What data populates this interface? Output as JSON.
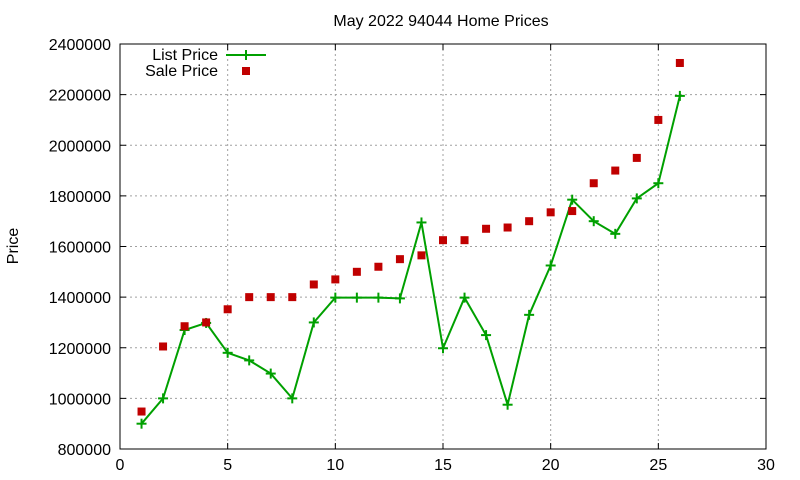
{
  "chart_data": {
    "type": "line",
    "title": "May 2022 94044 Home Prices",
    "xlabel": "",
    "ylabel": "Price",
    "xlim": [
      0,
      30
    ],
    "ylim": [
      800000,
      2400000
    ],
    "xticks": [
      0,
      5,
      10,
      15,
      20,
      25,
      30
    ],
    "yticks": [
      800000,
      1000000,
      1200000,
      1400000,
      1600000,
      1800000,
      2000000,
      2200000,
      2400000
    ],
    "grid": true,
    "legend_position": "top-left",
    "x": [
      1,
      2,
      3,
      4,
      5,
      6,
      7,
      8,
      9,
      10,
      11,
      12,
      13,
      14,
      15,
      16,
      17,
      18,
      19,
      20,
      21,
      22,
      23,
      24,
      25,
      26
    ],
    "series": [
      {
        "name": "List Price",
        "style": "line-plus",
        "color": "#00a000",
        "values": [
          900000,
          1000000,
          1270000,
          1298000,
          1180000,
          1150000,
          1098000,
          1000000,
          1300000,
          1398000,
          1398000,
          1398000,
          1395000,
          1695000,
          1198000,
          1398000,
          1250000,
          975000,
          1330000,
          1525000,
          1785000,
          1700000,
          1650000,
          1790000,
          1850000,
          2195000
        ]
      },
      {
        "name": "Sale Price",
        "style": "square-points",
        "color": "#c00000",
        "values": [
          948000,
          1205000,
          1285000,
          1300000,
          1352000,
          1400000,
          1400000,
          1400000,
          1450000,
          1470000,
          1500000,
          1520000,
          1550000,
          1565000,
          1625000,
          1625000,
          1670000,
          1675000,
          1700000,
          1735000,
          1740000,
          1850000,
          1900000,
          1950000,
          2100000,
          2325000
        ]
      }
    ]
  }
}
